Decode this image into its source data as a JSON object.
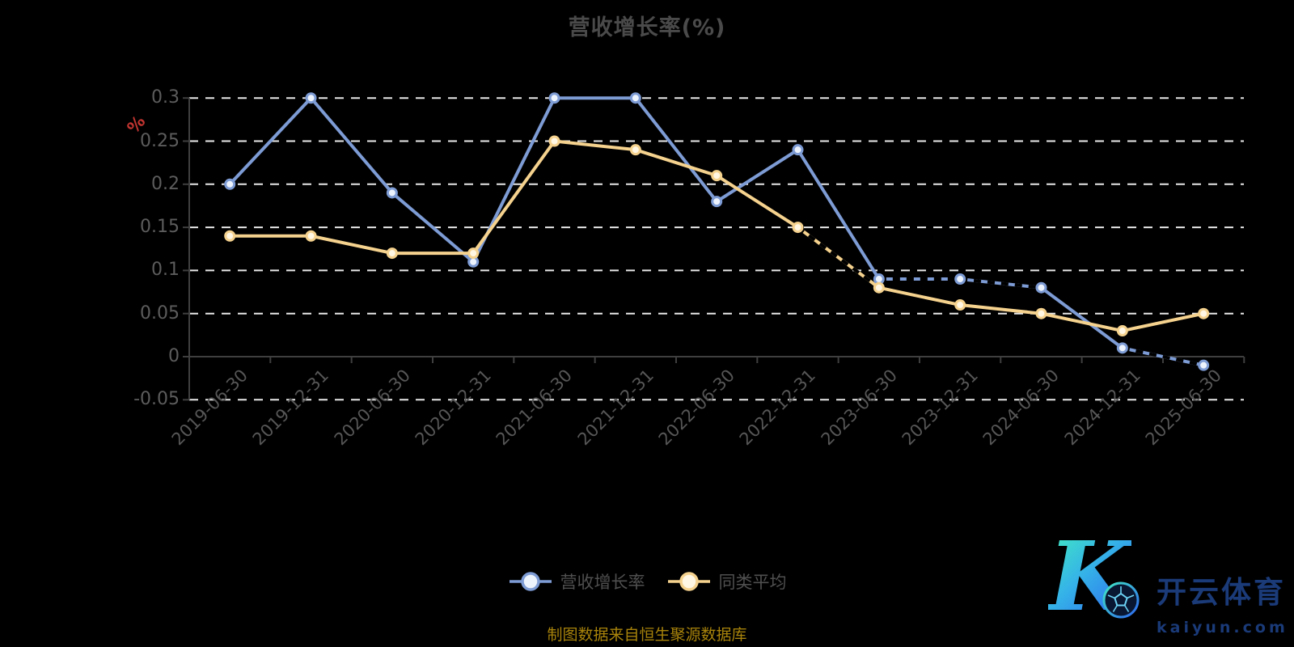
{
  "chart_data": {
    "type": "line",
    "title": "营收增长率(%)",
    "ylabel": "%",
    "xlabel": "",
    "categories": [
      "2019-06-30",
      "2019-12-31",
      "2020-06-30",
      "2020-12-31",
      "2021-06-30",
      "2021-12-31",
      "2022-06-30",
      "2022-12-31",
      "2023-06-30",
      "2023-12-31",
      "2024-06-30",
      "2024-12-31",
      "2025-06-30"
    ],
    "series": [
      {
        "name": "营收增长率",
        "color": "#7d9bd4",
        "marker_fill": "#edf3fc",
        "values": [
          0.2,
          0.3,
          0.19,
          0.11,
          0.3,
          0.3,
          0.18,
          0.24,
          0.09,
          0.09,
          0.08,
          0.01,
          -0.01
        ]
      },
      {
        "name": "同类平均",
        "color": "#f5d28e",
        "marker_fill": "#fff6e3",
        "values": [
          0.14,
          0.14,
          0.12,
          0.12,
          0.25,
          0.24,
          0.21,
          0.15,
          0.08,
          0.06,
          0.05,
          0.03,
          0.05
        ]
      }
    ],
    "y_ticks": [
      "0.3",
      "0.25",
      "0.2",
      "0.15",
      "0.1",
      "0.05",
      "0",
      "-0.05"
    ],
    "ylim": [
      -0.05,
      0.3
    ],
    "grid": true,
    "grid_style": "dashed",
    "legend_position": "bottom"
  },
  "footer": {
    "source": "制图数据来自恒生聚源数据库"
  },
  "watermark": {
    "monogram": "K",
    "brand": "开云体育",
    "domain": "kaiyun.com"
  },
  "colors": {
    "background": "#000000",
    "title_text": "#4a4a4a",
    "axis_label": "#5c5c5c",
    "grid_line": "#e8e8e8",
    "axis_line": "#3f3f3f",
    "axis_unit": "#c23531",
    "source_text": "#a8830b",
    "logo_text": "#1a3a78"
  }
}
